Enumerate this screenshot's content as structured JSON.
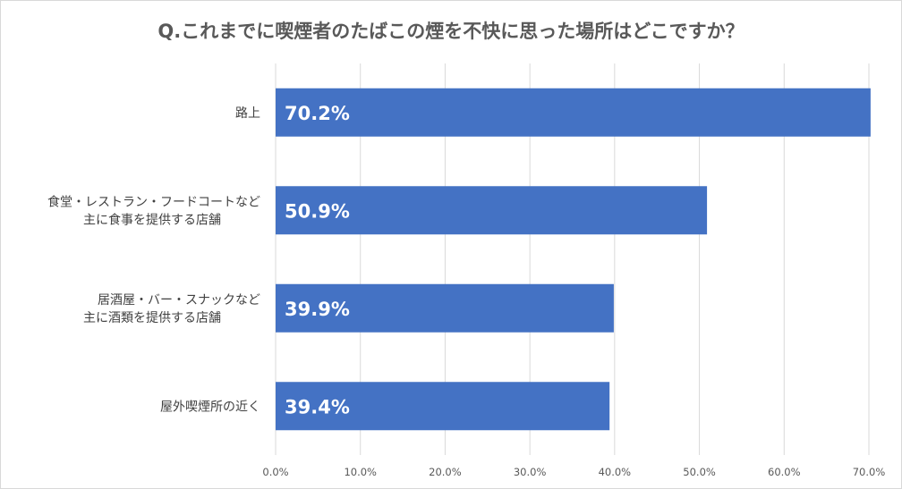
{
  "chart_data": {
    "type": "bar",
    "orientation": "horizontal",
    "title": "Q.これまでに喫煙者のたばこの煙を不快に思った場所はどこですか？",
    "categories": [
      [
        "路上"
      ],
      [
        "食堂・レストラン・フードコートなど",
        "主に食事を提供する店舗"
      ],
      [
        "居酒屋・バー・スナックなど",
        "主に酒類を提供する店舗"
      ],
      [
        "屋外喫煙所の近く"
      ]
    ],
    "values": [
      70.2,
      50.9,
      39.9,
      39.4
    ],
    "value_labels": [
      "70.2%",
      "50.9%",
      "39.9%",
      "39.4%"
    ],
    "xlim": [
      0,
      70
    ],
    "x_ticks": [
      0,
      10,
      20,
      30,
      40,
      50,
      60,
      70
    ],
    "x_tick_labels": [
      "0.0%",
      "10.0%",
      "20.0%",
      "30.0%",
      "40.0%",
      "50.0%",
      "60.0%",
      "70.0%"
    ],
    "grid": true,
    "legend": "none",
    "bar_color": "#4472c4",
    "grid_color": "#d9d9d9"
  }
}
